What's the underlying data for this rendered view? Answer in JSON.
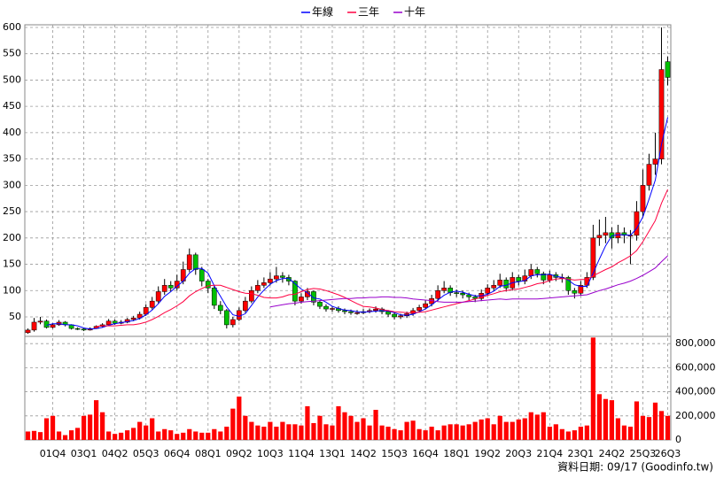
{
  "chart_data": {
    "type": "candlestick",
    "categories": [
      null,
      null,
      null,
      null,
      "01Q4",
      null,
      null,
      null,
      null,
      "03Q1",
      null,
      null,
      null,
      null,
      "04Q2",
      null,
      null,
      null,
      null,
      "05Q3",
      null,
      null,
      null,
      null,
      "06Q4",
      null,
      null,
      null,
      null,
      "08Q1",
      null,
      null,
      null,
      null,
      "09Q2",
      null,
      null,
      null,
      null,
      "10Q3",
      null,
      null,
      null,
      null,
      "11Q4",
      null,
      null,
      null,
      null,
      "13Q1",
      null,
      null,
      null,
      null,
      "14Q2",
      null,
      null,
      null,
      null,
      "15Q3",
      null,
      null,
      null,
      null,
      "16Q4",
      null,
      null,
      null,
      null,
      "18Q1",
      null,
      null,
      null,
      null,
      "19Q2",
      null,
      null,
      null,
      null,
      "20Q3",
      null,
      null,
      null,
      null,
      "21Q4",
      null,
      null,
      null,
      null,
      "23Q1",
      null,
      null,
      null,
      null,
      "24Q2",
      null,
      null,
      null,
      null,
      "25Q3",
      null,
      null,
      null,
      "26Q3"
    ],
    "open": [
      20,
      25,
      40,
      42,
      30,
      35,
      40,
      35,
      28,
      27,
      25,
      28,
      32,
      35,
      42,
      38,
      40,
      45,
      48,
      55,
      68,
      80,
      98,
      110,
      105,
      118,
      140,
      168,
      140,
      118,
      105,
      72,
      62,
      35,
      45,
      62,
      80,
      100,
      110,
      115,
      122,
      128,
      125,
      118,
      80,
      88,
      98,
      78,
      70,
      65,
      66,
      62,
      60,
      58,
      58,
      60,
      62,
      65,
      60,
      55,
      50,
      52,
      56,
      62,
      68,
      75,
      85,
      100,
      105,
      96,
      95,
      92,
      88,
      85,
      95,
      105,
      110,
      120,
      105,
      125,
      118,
      128,
      140,
      132,
      120,
      130,
      125,
      125,
      100,
      95,
      110,
      125,
      200,
      205,
      210,
      200,
      210,
      205,
      205,
      250,
      300,
      340,
      350,
      535
    ],
    "high": [
      28,
      48,
      50,
      45,
      38,
      44,
      42,
      36,
      30,
      29,
      30,
      34,
      38,
      46,
      45,
      44,
      48,
      52,
      60,
      74,
      88,
      108,
      122,
      118,
      130,
      155,
      180,
      172,
      145,
      122,
      110,
      80,
      65,
      50,
      68,
      88,
      108,
      120,
      125,
      135,
      145,
      135,
      130,
      120,
      95,
      105,
      100,
      82,
      74,
      70,
      70,
      66,
      64,
      63,
      65,
      66,
      70,
      68,
      63,
      58,
      56,
      60,
      67,
      73,
      82,
      92,
      110,
      118,
      110,
      102,
      100,
      96,
      92,
      102,
      112,
      120,
      132,
      125,
      135,
      130,
      140,
      150,
      145,
      136,
      138,
      135,
      132,
      128,
      105,
      118,
      135,
      225,
      235,
      240,
      220,
      225,
      220,
      215,
      270,
      330,
      360,
      400,
      600,
      545
    ],
    "low": [
      18,
      22,
      36,
      28,
      28,
      33,
      32,
      26,
      25,
      23,
      24,
      27,
      30,
      33,
      35,
      36,
      38,
      42,
      45,
      52,
      64,
      76,
      92,
      98,
      100,
      112,
      135,
      130,
      108,
      95,
      65,
      55,
      28,
      30,
      42,
      58,
      76,
      95,
      105,
      110,
      115,
      115,
      110,
      72,
      75,
      82,
      72,
      65,
      60,
      60,
      58,
      55,
      54,
      54,
      55,
      57,
      58,
      55,
      50,
      45,
      46,
      48,
      52,
      58,
      64,
      70,
      80,
      95,
      90,
      88,
      85,
      82,
      78,
      80,
      90,
      100,
      105,
      98,
      100,
      110,
      112,
      122,
      125,
      112,
      115,
      118,
      115,
      92,
      85,
      90,
      105,
      120,
      185,
      190,
      180,
      190,
      190,
      150,
      195,
      240,
      290,
      320,
      340,
      490
    ],
    "close": [
      25,
      40,
      42,
      30,
      35,
      40,
      35,
      28,
      27,
      25,
      28,
      32,
      35,
      42,
      38,
      40,
      45,
      48,
      55,
      68,
      80,
      98,
      110,
      105,
      118,
      140,
      168,
      140,
      118,
      105,
      72,
      62,
      35,
      45,
      62,
      80,
      100,
      110,
      115,
      122,
      128,
      125,
      118,
      80,
      88,
      98,
      78,
      70,
      65,
      66,
      62,
      60,
      58,
      58,
      60,
      62,
      65,
      60,
      55,
      50,
      52,
      56,
      62,
      68,
      75,
      85,
      100,
      105,
      96,
      95,
      92,
      88,
      85,
      95,
      105,
      110,
      120,
      105,
      125,
      118,
      128,
      140,
      132,
      120,
      130,
      125,
      125,
      100,
      95,
      110,
      125,
      200,
      205,
      210,
      200,
      210,
      205,
      205,
      250,
      300,
      340,
      350,
      520,
      505
    ],
    "up_color": "#ff0000",
    "down_color": "#00c000",
    "ylim": [
      13,
      605
    ],
    "yticks": [
      50,
      100,
      150,
      200,
      250,
      300,
      350,
      400,
      450,
      500,
      550,
      600
    ],
    "grid": true,
    "legend": "top",
    "lines": [
      {
        "name": "年線",
        "color": "#0000ff",
        "values": [
          null,
          null,
          null,
          34,
          37,
          37,
          35,
          35,
          33,
          29,
          27,
          28,
          30,
          34,
          37,
          39,
          41,
          43,
          47,
          54,
          63,
          75,
          89,
          98,
          108,
          118,
          133,
          142,
          142,
          133,
          109,
          89,
          69,
          54,
          51,
          56,
          72,
          88,
          101,
          112,
          119,
          123,
          123,
          113,
          103,
          96,
          86,
          84,
          78,
          70,
          66,
          63,
          62,
          60,
          59,
          60,
          61,
          62,
          61,
          58,
          54,
          53,
          55,
          60,
          65,
          73,
          82,
          91,
          97,
          99,
          97,
          93,
          90,
          90,
          93,
          99,
          108,
          110,
          115,
          117,
          119,
          128,
          130,
          130,
          131,
          127,
          125,
          120,
          111,
          108,
          108,
          133,
          160,
          185,
          204,
          206,
          206,
          205,
          218,
          240,
          274,
          310,
          378,
          429
        ]
      },
      {
        "name": "三年",
        "color": "#ff0040",
        "values": [
          null,
          null,
          null,
          null,
          null,
          null,
          null,
          null,
          null,
          null,
          null,
          32,
          33,
          33,
          33,
          34,
          35,
          35,
          37,
          40,
          45,
          51,
          58,
          64,
          71,
          79,
          90,
          98,
          104,
          109,
          110,
          110,
          106,
          102,
          98,
          95,
          94,
          91,
          87,
          86,
          86,
          88,
          92,
          93,
          98,
          102,
          104,
          103,
          100,
          96,
          92,
          87,
          81,
          75,
          70,
          69,
          67,
          64,
          62,
          60,
          59,
          58,
          58,
          59,
          60,
          63,
          66,
          69,
          72,
          75,
          78,
          81,
          84,
          87,
          91,
          94,
          98,
          100,
          102,
          103,
          106,
          109,
          113,
          115,
          119,
          122,
          123,
          122,
          120,
          121,
          121,
          128,
          134,
          140,
          145,
          153,
          159,
          166,
          176,
          193,
          213,
          233,
          266,
          292
        ]
      },
      {
        "name": "十年",
        "color": "#9900cc",
        "values": [
          null,
          null,
          null,
          null,
          null,
          null,
          null,
          null,
          null,
          null,
          null,
          null,
          null,
          null,
          null,
          null,
          null,
          null,
          null,
          null,
          null,
          null,
          null,
          null,
          null,
          null,
          null,
          null,
          null,
          null,
          null,
          null,
          null,
          null,
          null,
          null,
          null,
          null,
          null,
          69,
          71,
          73,
          75,
          76,
          78,
          79,
          80,
          81,
          82,
          83,
          84,
          85,
          85,
          86,
          86,
          87,
          87,
          88,
          88,
          87,
          87,
          86,
          84,
          83,
          82,
          81,
          79,
          78,
          78,
          78,
          78,
          79,
          80,
          81,
          82,
          83,
          84,
          83,
          84,
          84,
          84,
          84,
          84,
          85,
          86,
          87,
          88,
          89,
          90,
          91,
          92,
          96,
          100,
          103,
          107,
          111,
          114,
          118,
          123,
          129,
          136,
          143,
          155,
          166
        ]
      }
    ],
    "volume": {
      "color": "#ff0000",
      "ylim": [
        0,
        860000
      ],
      "yticks": [
        0,
        {
          "value": 200000,
          "label": "200,000"
        },
        {
          "value": 400000,
          "label": "400,000"
        },
        {
          "value": 600000,
          "label": "600,000"
        },
        {
          "value": 800000,
          "label": "800,000"
        }
      ],
      "values": [
        70000,
        75000,
        65000,
        180000,
        200000,
        70000,
        40000,
        80000,
        100000,
        200000,
        210000,
        330000,
        230000,
        70000,
        50000,
        60000,
        80000,
        100000,
        150000,
        120000,
        180000,
        70000,
        90000,
        80000,
        50000,
        60000,
        90000,
        70000,
        60000,
        60000,
        90000,
        70000,
        110000,
        260000,
        360000,
        200000,
        150000,
        120000,
        110000,
        150000,
        110000,
        150000,
        130000,
        130000,
        120000,
        280000,
        140000,
        200000,
        130000,
        120000,
        280000,
        230000,
        200000,
        150000,
        180000,
        120000,
        250000,
        120000,
        110000,
        90000,
        80000,
        150000,
        160000,
        90000,
        80000,
        110000,
        80000,
        120000,
        130000,
        130000,
        120000,
        130000,
        150000,
        170000,
        180000,
        130000,
        200000,
        150000,
        150000,
        170000,
        180000,
        230000,
        210000,
        230000,
        110000,
        130000,
        90000,
        70000,
        80000,
        110000,
        120000,
        850000,
        380000,
        340000,
        330000,
        180000,
        120000,
        110000,
        320000,
        200000,
        190000,
        310000,
        240000,
        200000
      ]
    },
    "footer": "資料日期: 09/17 (Goodinfo.tw)"
  }
}
